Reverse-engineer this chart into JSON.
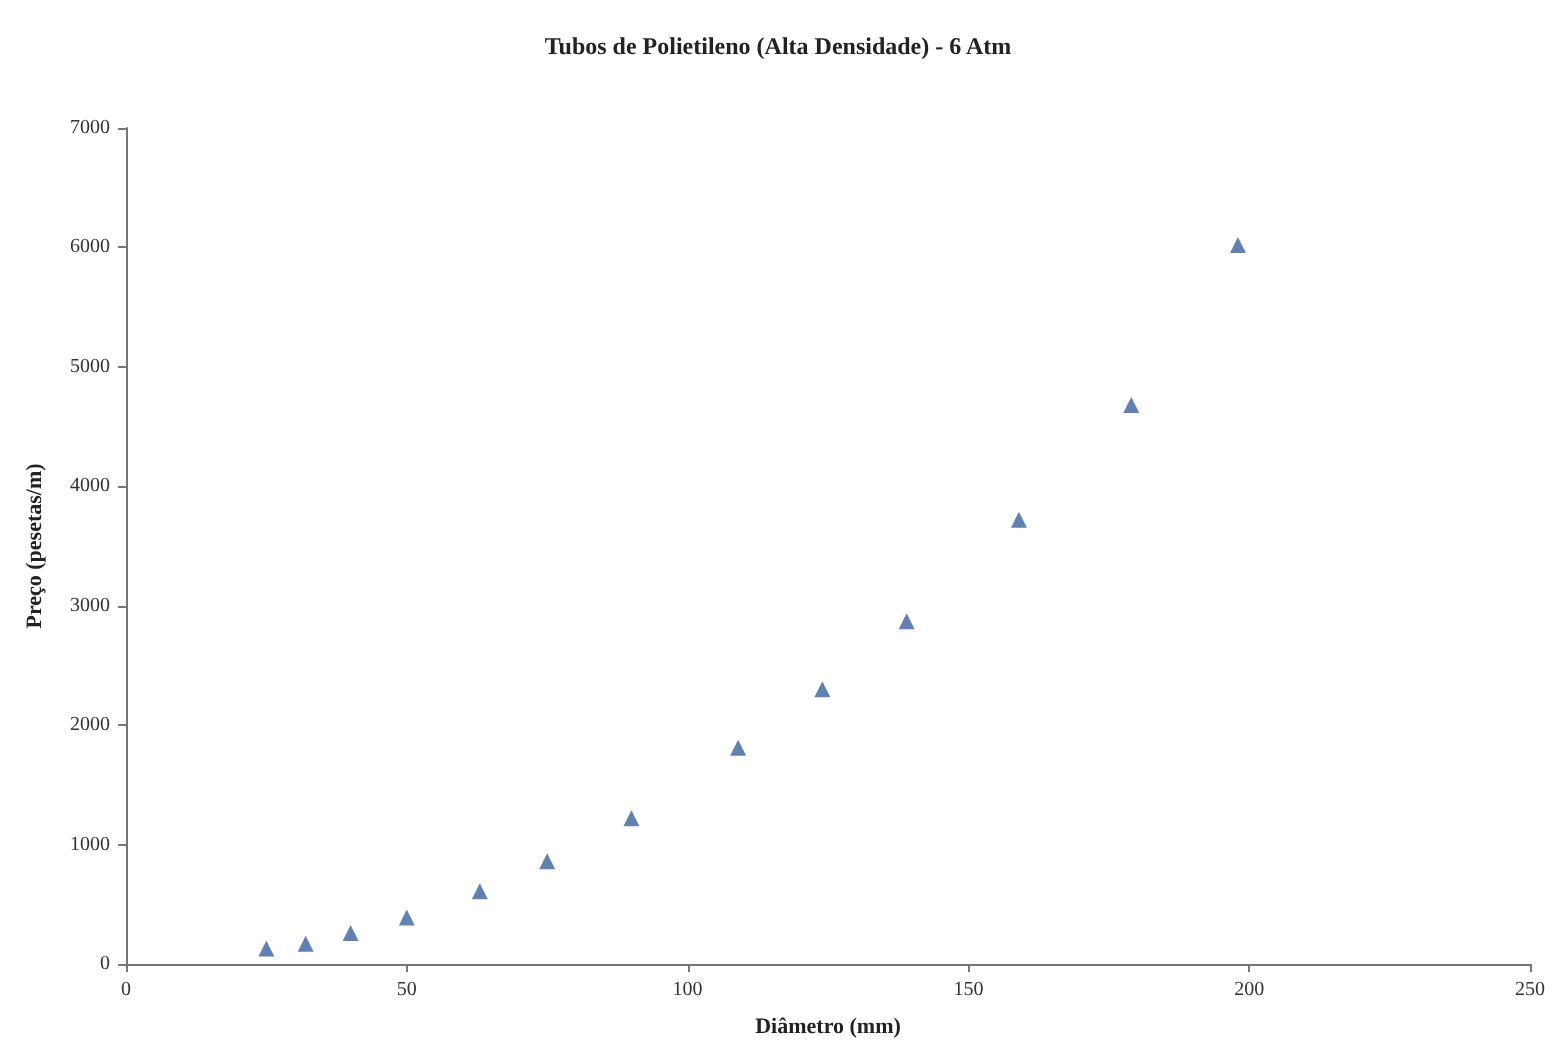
{
  "chart_data": {
    "type": "scatter",
    "title": "Tubos de Polietileno (Alta Densidade) - 6 Atm",
    "xlabel": "Diâmetro (mm)",
    "ylabel": "Preço (pesetas/m)",
    "x": [
      25,
      32,
      40,
      50,
      63,
      75,
      90,
      109,
      124,
      139,
      159,
      179,
      198
    ],
    "values": [
      130,
      170,
      260,
      390,
      610,
      860,
      1220,
      1810,
      2300,
      2870,
      3720,
      4680,
      6020
    ],
    "color": "#3a62a0",
    "marker": "triangle",
    "grid": false,
    "xlim": [
      0,
      250
    ],
    "xticks": [
      0,
      50,
      100,
      150,
      200,
      250
    ],
    "ylim": [
      0,
      7000
    ],
    "yticks": [
      0,
      1000,
      2000,
      3000,
      4000,
      5000,
      6000,
      7000
    ]
  }
}
